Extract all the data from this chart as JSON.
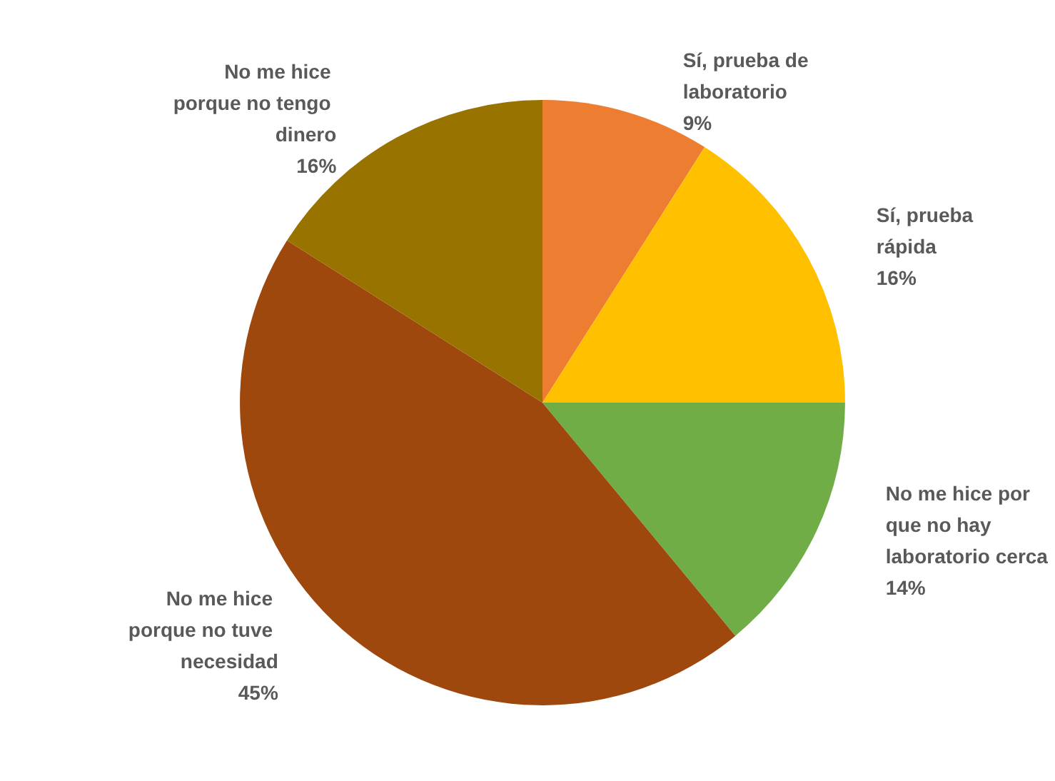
{
  "chart_data": {
    "type": "pie",
    "categories": [
      "Sí, prueba de laboratorio",
      "Sí, prueba rápida",
      "No me hice por que no hay laboratorio cerca",
      "No me hice porque no tuve necesidad",
      "No me hice porque no tengo dinero"
    ],
    "values": [
      9,
      16,
      14,
      45,
      16
    ],
    "value_labels": [
      "9%",
      "16%",
      "14%",
      "45%",
      "16%"
    ],
    "colors": [
      "#ed7d31",
      "#ffc000",
      "#70ad47",
      "#9e480e",
      "#997300"
    ],
    "legend": false
  }
}
